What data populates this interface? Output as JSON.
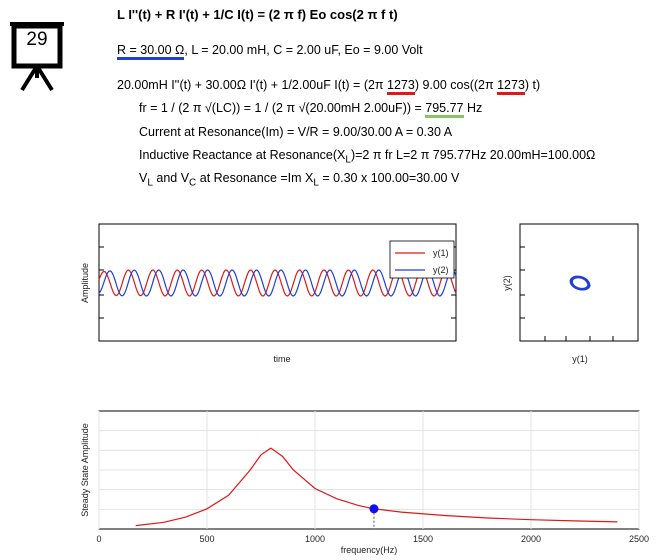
{
  "badge": {
    "number": "29"
  },
  "equation": {
    "title": "L I''(t) + R I'(t) + 1/C I(t) = (2 π f) Eo cos(2 π f t)",
    "params_R": "R = 30.00 Ω",
    "params_rest": ", L = 20.00 mH, C = 2.00 uF, Eo = 9.00 Volt",
    "line3_a": "20.00mH I''(t) + 30.00Ω I'(t) + 1/2.00uF I(t) = (2π ",
    "line3_f1": "1273",
    "line3_b": ") 9.00 cos((2π ",
    "line3_f2": "1273",
    "line3_c": ") t)",
    "fr_a": "fr = 1 / (2 π √(LC)) = 1 / (2 π √(20.00mH 2.00uF)) = ",
    "fr_val": "795.77",
    "fr_unit": " Hz",
    "current": "Current at Resonance(Im) = V/R = 9.00/30.00 A = 0.30 A",
    "ind_a": "Inductive Reactance at Resonance(X",
    "ind_sub": "L",
    "ind_b": ")=2 π fr L=2 π 795.77Hz 20.00mH=100.00Ω",
    "v_a": "V",
    "v_sub1": "L",
    "v_b": " and V",
    "v_sub2": "C",
    "v_c": " at Resonance =Im X",
    "v_sub3": "L",
    "v_d": " = 0.30 x 100.00=30.00 V"
  },
  "colors": {
    "y1": "#e01818",
    "y2": "#1f3fd6",
    "green": "#8ac46a",
    "curve": "#e01818",
    "point": "#1010ee"
  },
  "time_plot": {
    "ylabel": "Amplitude",
    "xlabel": "time",
    "legend": [
      "y(1)",
      "y(2)"
    ]
  },
  "phase_plot": {
    "ylabel": "y(2)",
    "xlabel": "y(1)"
  },
  "chart_data": {
    "type": "line",
    "title": "",
    "xlabel": "frequency(Hz)",
    "ylabel": "Steady State Amplitude",
    "xlim": [
      0,
      2500
    ],
    "x_ticks": [
      0,
      500,
      1000,
      1500,
      2000,
      2500
    ],
    "series": [
      {
        "x": [
          170,
          300,
          400,
          500,
          600,
          700,
          750,
          796,
          850,
          900,
          1000,
          1100,
          1200,
          1273,
          1400,
          1600,
          1800,
          2000,
          2200,
          2400
        ],
        "values": [
          0.02,
          0.04,
          0.07,
          0.12,
          0.2,
          0.35,
          0.44,
          0.48,
          0.43,
          0.35,
          0.24,
          0.18,
          0.14,
          0.12,
          0.1,
          0.08,
          0.065,
          0.055,
          0.048,
          0.042
        ]
      }
    ],
    "marker": {
      "x": 1273,
      "y": 0.12
    }
  }
}
